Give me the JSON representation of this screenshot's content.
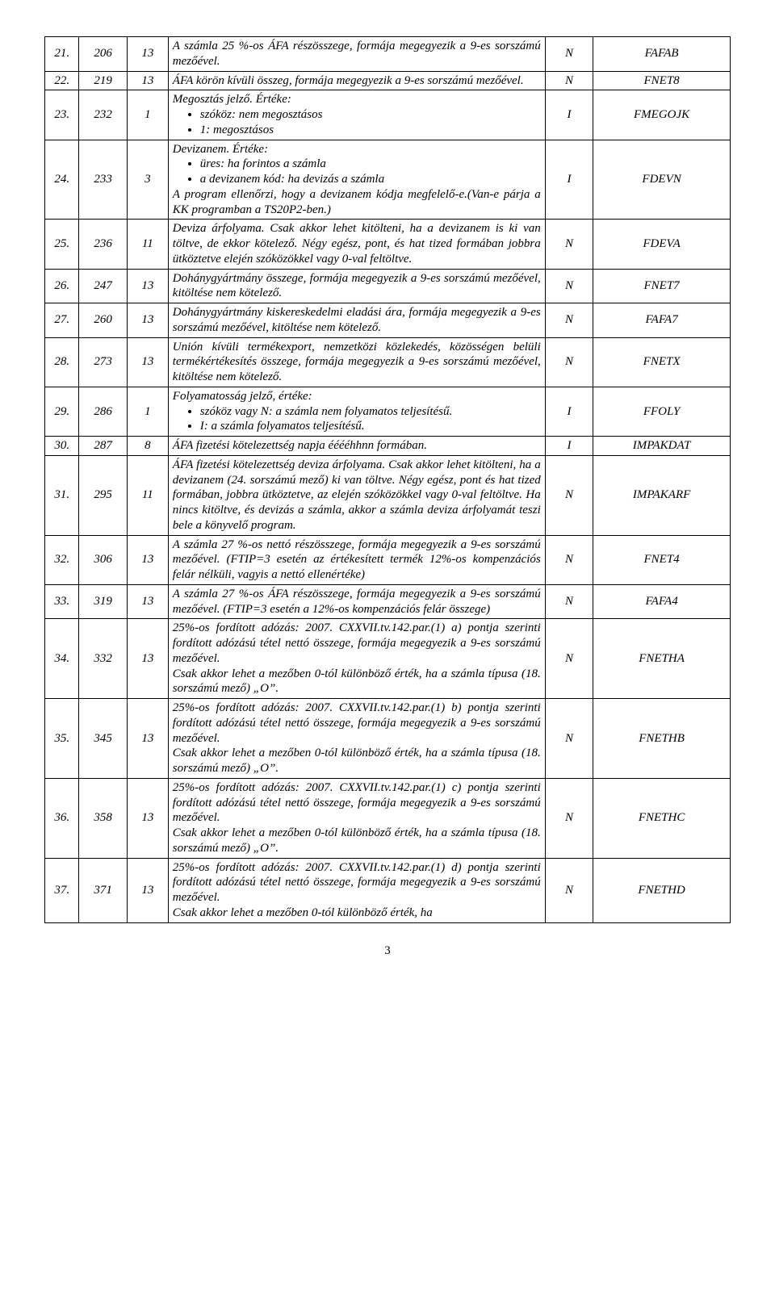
{
  "rows": [
    {
      "seq": "21.",
      "pos": "206",
      "len": "13",
      "desc_html": "A számla 25 %-os ÁFA részösszege, formája megegyezik a 9-es sorszámú mezőével.",
      "type": "N",
      "name": "FAFAB"
    },
    {
      "seq": "22.",
      "pos": "219",
      "len": "13",
      "desc_html": "ÁFA körön kívüli összeg, formája megegyezik a 9-es sorszámú mezőével.",
      "type": "N",
      "name": "FNET8"
    },
    {
      "seq": "23.",
      "pos": "232",
      "len": "1",
      "desc_html": "Megosztás jelző. Értéke:<ul><li>szóköz: nem megosztásos</li><li>1: megosztásos</li></ul>",
      "type": "I",
      "name": "FMEGOJK"
    },
    {
      "seq": "24.",
      "pos": "233",
      "len": "3",
      "desc_html": "Devizanem. Értéke:<ul><li>üres: ha forintos a számla</li><li>a devizanem kód: ha devizás a számla</li></ul>A program ellenőrzi, hogy a devizanem kódja megfelelő-e.(Van-e párja a KK programban a TS20P2-ben.)",
      "type": "I",
      "name": "FDEVN"
    },
    {
      "seq": "25.",
      "pos": "236",
      "len": "11",
      "desc_html": "Deviza árfolyama. Csak akkor lehet kitölteni, ha a devizanem is ki van töltve, de ekkor kötelező. Négy egész, pont, és hat tized formában jobbra ütköztetve elején szóközökkel vagy 0-val feltöltve.",
      "type": "N",
      "name": "FDEVA"
    },
    {
      "seq": "26.",
      "pos": "247",
      "len": "13",
      "desc_html": "Dohánygyártmány összege, formája megegyezik a 9-es sorszámú mezőével, kitöltése nem kötelező.",
      "type": "N",
      "name": "FNET7"
    },
    {
      "seq": "27.",
      "pos": "260",
      "len": "13",
      "desc_html": "Dohánygyártmány kiskereskedelmi eladási ára, formája megegyezik a 9-es sorszámú mezőével, kitöltése nem kötelező.",
      "type": "N",
      "name": "FAFA7"
    },
    {
      "seq": "28.",
      "pos": "273",
      "len": "13",
      "desc_html": "Unión kívüli termékexport, nemzetközi közlekedés, közösségen belüli termékértékesítés összege, formája megegyezik a 9-es sorszámú mezőével, kitöltése nem kötelező.",
      "type": "N",
      "name": "FNETX"
    },
    {
      "seq": "29.",
      "pos": "286",
      "len": "1",
      "desc_html": "Folyamatosság jelző, értéke:<ul><li>szóköz vagy N: a számla nem folyamatos teljesítésű.</li><li>I: a számla folyamatos teljesítésű.</li></ul>",
      "type": "I",
      "name": "FFOLY"
    },
    {
      "seq": "30.",
      "pos": "287",
      "len": "8",
      "desc_html": "ÁFA fizetési kötelezettség napja ééééhhnn formában.",
      "type": "I",
      "name": "IMPAKDAT"
    },
    {
      "seq": "31.",
      "pos": "295",
      "len": "11",
      "desc_html": "ÁFA fizetési kötelezettség deviza árfolyama. Csak akkor lehet kitölteni, ha a devizanem (24. sorszámú mező) ki van töltve. Négy egész, pont és hat tized formában, jobbra ütköztetve, az elején szóközökkel vagy 0-val feltöltve. Ha nincs kitöltve, és devizás a számla, akkor a számla deviza árfolyamát teszi bele a könyvelő program.",
      "type": "N",
      "name": "IMPAKARF"
    },
    {
      "seq": "32.",
      "pos": "306",
      "len": "13",
      "desc_html": "A számla 27 %-os nettó részösszege, formája megegyezik a 9-es sorszámú mezőével. (FTIP=3 esetén az értékesített termék 12%-os kompenzációs felár nélküli, vagyis a nettó ellenértéke)",
      "type": "N",
      "name": "FNET4"
    },
    {
      "seq": "33.",
      "pos": "319",
      "len": "13",
      "desc_html": "A számla 27 %-os ÁFA részösszege, formája megegyezik a 9-es sorszámú mezőével. (FTIP=3 esetén a 12%-os kompenzációs felár összege)",
      "type": "N",
      "name": "FAFA4"
    },
    {
      "seq": "34.",
      "pos": "332",
      "len": "13",
      "desc_html": "25%-os fordított adózás: 2007. CXXVII.tv.142.par.(1) a) pontja szerinti fordított adózású tétel nettó összege, formája megegyezik a 9-es sorszámú mezőével.<br>Csak akkor lehet a mezőben 0-tól különböző érték, ha a számla típusa (18. sorszámú mező) „O”.",
      "type": "N",
      "name": "FNETHA"
    },
    {
      "seq": "35.",
      "pos": "345",
      "len": "13",
      "desc_html": "25%-os fordított adózás: 2007. CXXVII.tv.142.par.(1) b) pontja szerinti fordított adózású tétel nettó összege, formája megegyezik a 9-es sorszámú mezőével.<br>Csak akkor lehet a mezőben 0-tól különböző érték, ha a számla típusa (18. sorszámú mező) „O”.",
      "type": "N",
      "name": "FNETHB"
    },
    {
      "seq": "36.",
      "pos": "358",
      "len": "13",
      "desc_html": "25%-os fordított adózás: 2007. CXXVII.tv.142.par.(1) c) pontja szerinti fordított adózású tétel nettó összege, formája megegyezik a 9-es sorszámú mezőével.<br>Csak akkor lehet a mezőben 0-tól különböző érték, ha a számla típusa (18. sorszámú mező) „O”.",
      "type": "N",
      "name": "FNETHC"
    },
    {
      "seq": "37.",
      "pos": "371",
      "len": "13",
      "desc_html": "25%-os fordított adózás: 2007. CXXVII.tv.142.par.(1) d) pontja szerinti fordított adózású tétel nettó összege, formája megegyezik a 9-es sorszámú mezőével.<br>Csak akkor lehet a mezőben 0-tól különböző érték, ha",
      "type": "N",
      "name": "FNETHD"
    }
  ],
  "page_number": "3"
}
